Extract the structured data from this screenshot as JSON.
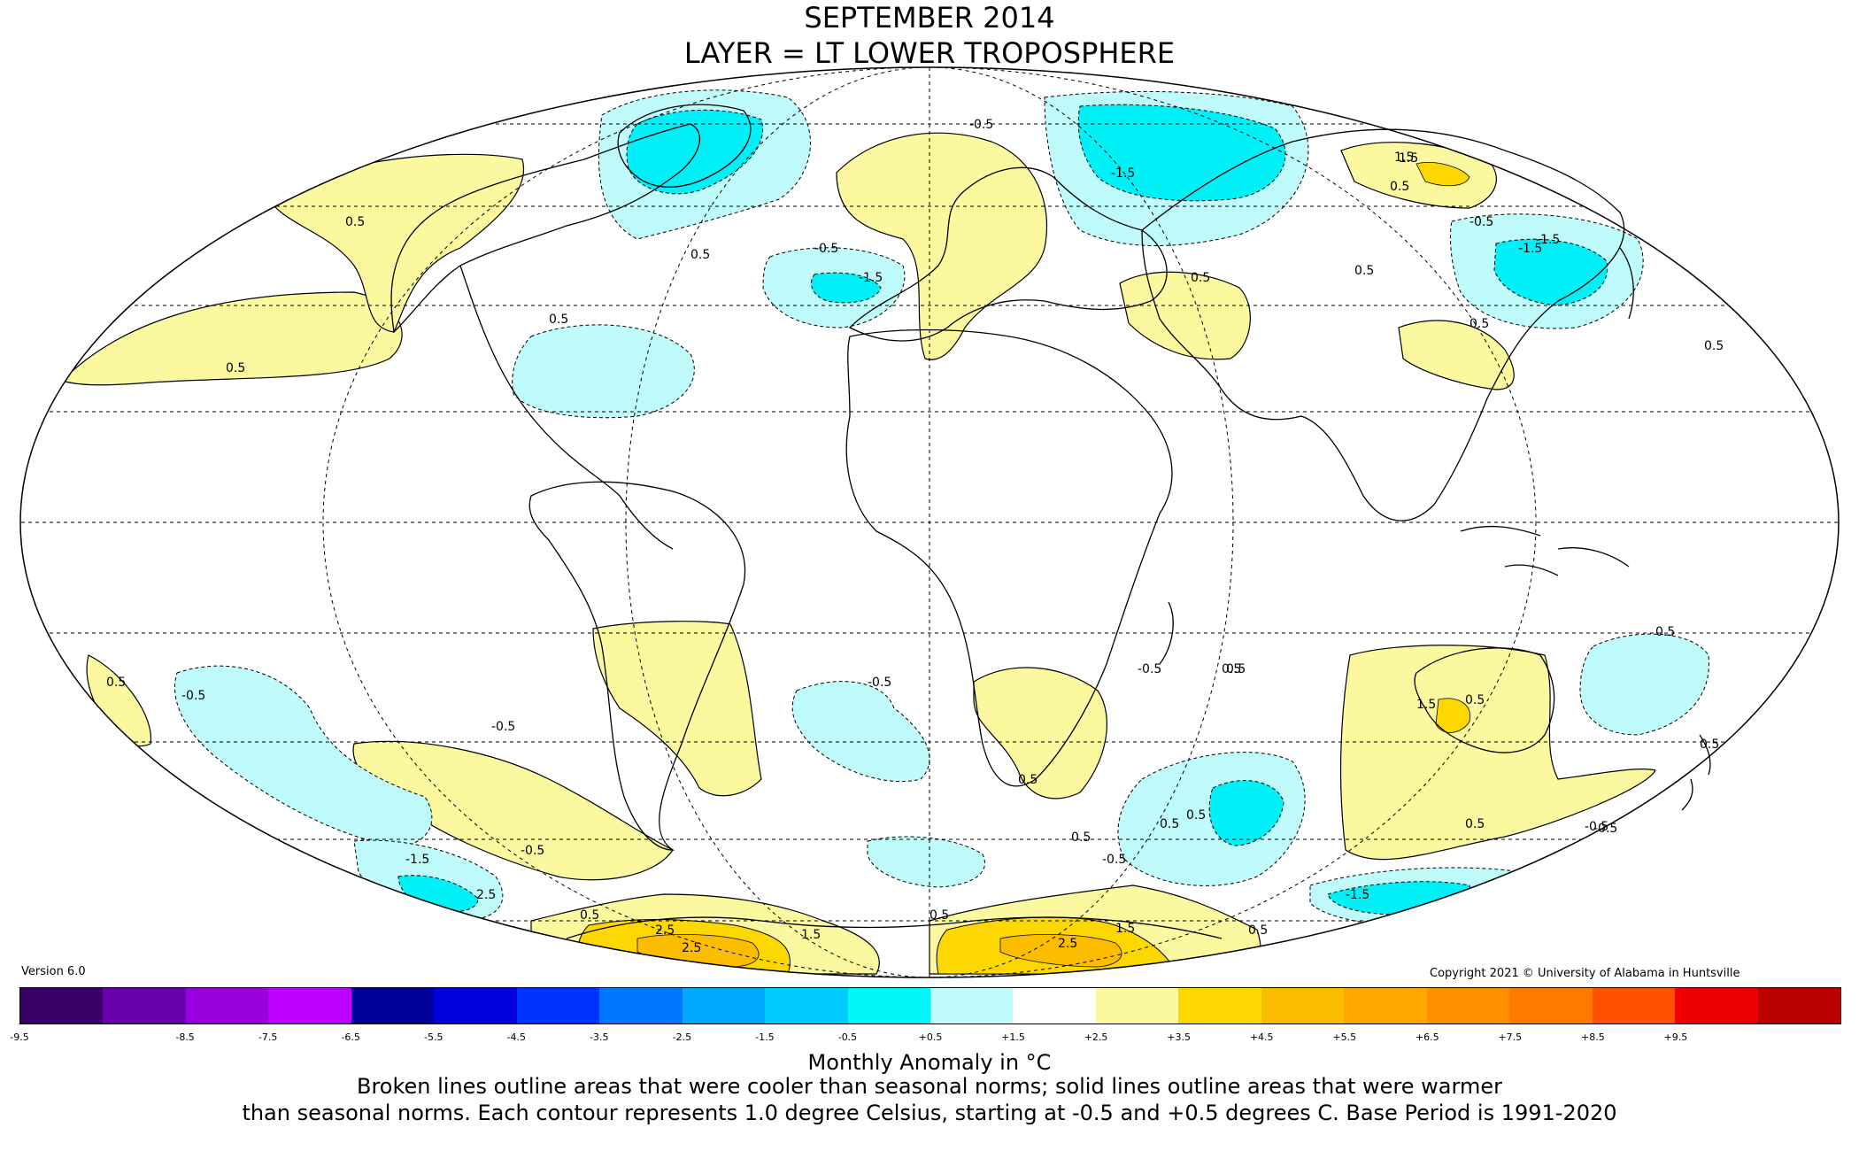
{
  "title": {
    "line1": "SEPTEMBER 2014",
    "line2": "LAYER = LT LOWER TROPOSPHERE"
  },
  "map": {
    "projection": "mollweide",
    "colors": {
      "ocean_background": "#ffffff",
      "cool_shade": "#c0fbfb",
      "cool_strong": "#00f0f8",
      "cool_deep": "#00c8f8",
      "warm_shade": "#fcf8a0",
      "warm_strong": "#fcd800",
      "warm_deep": "#fcbc00",
      "coastline": "#000000"
    },
    "contour_labels": [
      "0.5",
      "0.5",
      "0.5",
      "-0.5",
      "-1.5",
      "0.5",
      "-0.5",
      "-1.5",
      "1.5",
      "0.5",
      "-0.5",
      "0.5",
      "0.5",
      "-1.5",
      "0.5",
      "0.5",
      "0.5",
      "0.5",
      "-0.5",
      "0.5",
      "-0.5",
      "0.5",
      "0.5",
      "-0.5",
      "1.5",
      "0.5",
      "0.5",
      "0.5",
      "-0.5",
      "-0.5",
      "0.5",
      "0.5",
      "-1.5",
      "-0.5",
      "0.5",
      "2.5",
      "2.5",
      "1.5",
      "0.5",
      "0.5",
      "2.5",
      "2.5",
      "1.5",
      "-1.5",
      "-0.5",
      "0.5",
      "-0.5",
      "-1.5",
      "1.5"
    ]
  },
  "version": "Version 6.0",
  "copyright": "Copyright 2021 © University of Alabama in Huntsville",
  "legend": {
    "colors": [
      "#3a0066",
      "#6600aa",
      "#9a00dd",
      "#bb00ff",
      "#000099",
      "#0000dd",
      "#0033ff",
      "#0077ff",
      "#00aaff",
      "#00ccff",
      "#00f8f8",
      "#c0fbfb",
      "#ffffff",
      "#fcf8a0",
      "#fcd800",
      "#fcbc00",
      "#ffa800",
      "#ff9000",
      "#ff7800",
      "#ff5000",
      "#ee0000",
      "#bb0000"
    ],
    "ticks": [
      "-9.5",
      "-8.5",
      "-7.5",
      "-6.5",
      "-5.5",
      "-4.5",
      "-3.5",
      "-2.5",
      "-1.5",
      "-0.5",
      "+0.5",
      "+1.5",
      "+2.5",
      "+3.5",
      "+4.5",
      "+5.5",
      "+6.5",
      "+7.5",
      "+8.5",
      "+9.5"
    ]
  },
  "caption": {
    "units": "Monthly Anomaly in °C",
    "line1": "Broken lines outline areas that were cooler than seasonal norms; solid lines outline areas that were warmer",
    "line2": "than seasonal norms. Each contour represents 1.0 degree Celsius, starting at -0.5 and +0.5 degrees C. Base Period is 1991-2020"
  }
}
